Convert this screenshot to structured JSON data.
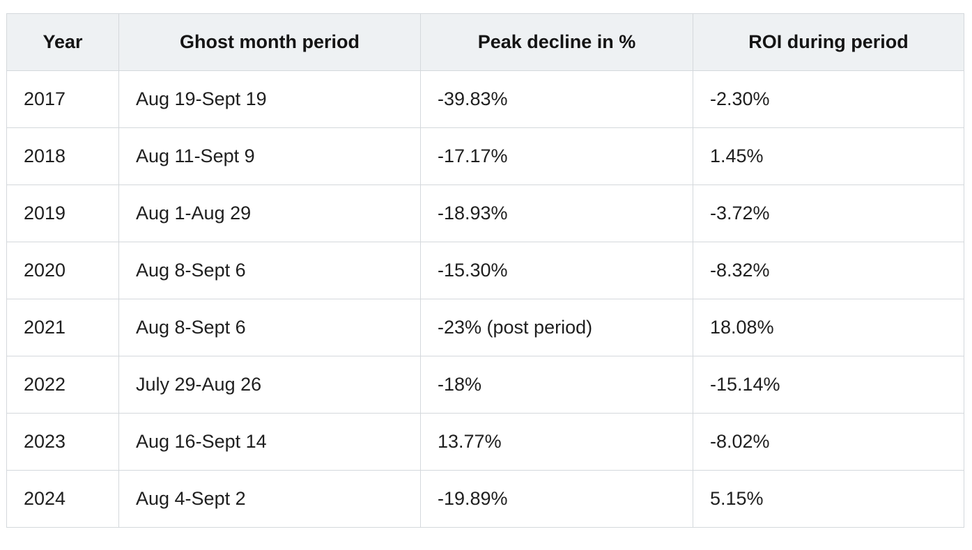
{
  "table": {
    "headers": [
      "Year",
      "Ghost month period",
      "Peak decline in %",
      "ROI during period"
    ],
    "rows": [
      [
        "2017",
        "Aug 19-Sept 19",
        "-39.83%",
        "-2.30%"
      ],
      [
        "2018",
        "Aug 11-Sept 9",
        "-17.17%",
        "1.45%"
      ],
      [
        "2019",
        "Aug 1-Aug 29",
        "-18.93%",
        "-3.72%"
      ],
      [
        "2020",
        "Aug 8-Sept 6",
        "-15.30%",
        "-8.32%"
      ],
      [
        "2021",
        "Aug 8-Sept 6",
        "-23% (post period)",
        "18.08%"
      ],
      [
        "2022",
        "July 29-Aug 26",
        "-18%",
        "-15.14%"
      ],
      [
        "2023",
        "Aug 16-Sept 14",
        "13.77%",
        "-8.02%"
      ],
      [
        "2024",
        "Aug 4-Sept 2",
        "-19.89%",
        "5.15%"
      ]
    ]
  },
  "colors": {
    "header_bg": "#eef1f3",
    "border": "#d4d8dc",
    "text": "#1f1f1f"
  }
}
